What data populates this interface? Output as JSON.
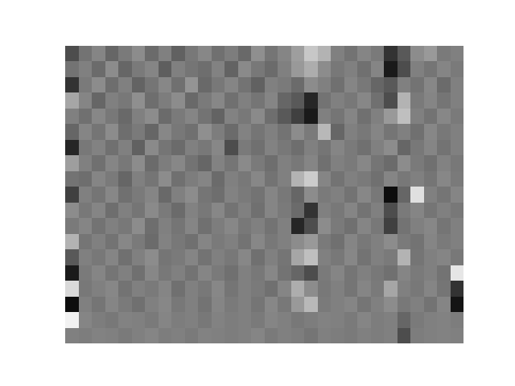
{
  "chart_data": {
    "type": "heatmap",
    "color": "gray",
    "tick_labels": false,
    "zlim": [
      0,
      1
    ],
    "cells": [
      [
        0.3,
        0.45,
        0.52,
        0.4,
        0.48,
        0.55,
        0.42,
        0.5,
        0.38,
        0.47,
        0.53,
        0.44,
        0.49,
        0.41,
        0.56,
        0.46,
        0.52,
        0.62,
        0.78,
        0.7,
        0.5,
        0.45,
        0.52,
        0.48,
        0.2,
        0.35,
        0.55,
        0.6,
        0.48,
        0.5
      ],
      [
        0.45,
        0.5,
        0.42,
        0.55,
        0.4,
        0.48,
        0.52,
        0.37,
        0.5,
        0.46,
        0.43,
        0.51,
        0.39,
        0.54,
        0.47,
        0.42,
        0.5,
        0.6,
        0.68,
        0.55,
        0.47,
        0.5,
        0.44,
        0.52,
        0.1,
        0.3,
        0.5,
        0.46,
        0.52,
        0.48
      ],
      [
        0.2,
        0.48,
        0.55,
        0.43,
        0.5,
        0.39,
        0.46,
        0.53,
        0.44,
        0.58,
        0.41,
        0.47,
        0.52,
        0.45,
        0.38,
        0.5,
        0.48,
        0.42,
        0.55,
        0.5,
        0.44,
        0.52,
        0.47,
        0.4,
        0.35,
        0.5,
        0.45,
        0.53,
        0.42,
        0.5
      ],
      [
        0.65,
        0.52,
        0.4,
        0.5,
        0.47,
        0.56,
        0.43,
        0.49,
        0.55,
        0.41,
        0.48,
        0.53,
        0.44,
        0.5,
        0.46,
        0.52,
        0.4,
        0.35,
        0.15,
        0.45,
        0.5,
        0.47,
        0.53,
        0.44,
        0.3,
        0.7,
        0.48,
        0.52,
        0.46,
        0.5
      ],
      [
        0.5,
        0.44,
        0.53,
        0.47,
        0.41,
        0.5,
        0.55,
        0.42,
        0.48,
        0.52,
        0.45,
        0.39,
        0.51,
        0.47,
        0.54,
        0.43,
        0.35,
        0.25,
        0.1,
        0.5,
        0.46,
        0.52,
        0.44,
        0.5,
        0.6,
        0.75,
        0.5,
        0.45,
        0.53,
        0.48
      ],
      [
        0.4,
        0.52,
        0.46,
        0.55,
        0.43,
        0.48,
        0.4,
        0.53,
        0.47,
        0.44,
        0.56,
        0.49,
        0.42,
        0.51,
        0.46,
        0.5,
        0.45,
        0.55,
        0.48,
        0.72,
        0.4,
        0.5,
        0.47,
        0.52,
        0.46,
        0.5,
        0.44,
        0.53,
        0.47,
        0.5
      ],
      [
        0.15,
        0.47,
        0.51,
        0.44,
        0.5,
        0.38,
        0.54,
        0.46,
        0.42,
        0.5,
        0.47,
        0.53,
        0.3,
        0.48,
        0.44,
        0.51,
        0.47,
        0.43,
        0.5,
        0.46,
        0.52,
        0.48,
        0.44,
        0.5,
        0.55,
        0.4,
        0.47,
        0.52,
        0.45,
        0.5
      ],
      [
        0.62,
        0.5,
        0.44,
        0.52,
        0.47,
        0.55,
        0.42,
        0.49,
        0.53,
        0.45,
        0.4,
        0.51,
        0.46,
        0.54,
        0.48,
        0.43,
        0.5,
        0.47,
        0.52,
        0.44,
        0.5,
        0.48,
        0.53,
        0.46,
        0.42,
        0.55,
        0.48,
        0.44,
        0.51,
        0.47
      ],
      [
        0.45,
        0.43,
        0.52,
        0.48,
        0.4,
        0.5,
        0.46,
        0.55,
        0.44,
        0.49,
        0.52,
        0.42,
        0.5,
        0.47,
        0.53,
        0.45,
        0.5,
        0.7,
        0.8,
        0.52,
        0.45,
        0.5,
        0.48,
        0.44,
        0.52,
        0.47,
        0.5,
        0.46,
        0.53,
        0.48
      ],
      [
        0.25,
        0.5,
        0.46,
        0.53,
        0.44,
        0.48,
        0.52,
        0.41,
        0.5,
        0.55,
        0.46,
        0.43,
        0.51,
        0.48,
        0.45,
        0.52,
        0.47,
        0.4,
        0.55,
        0.48,
        0.5,
        0.45,
        0.53,
        0.47,
        0.05,
        0.4,
        0.88,
        0.5,
        0.46,
        0.52
      ],
      [
        0.55,
        0.47,
        0.52,
        0.43,
        0.5,
        0.46,
        0.54,
        0.48,
        0.42,
        0.51,
        0.47,
        0.53,
        0.45,
        0.5,
        0.44,
        0.52,
        0.48,
        0.42,
        0.2,
        0.5,
        0.47,
        0.52,
        0.45,
        0.5,
        0.3,
        0.48,
        0.52,
        0.46,
        0.5,
        0.47
      ],
      [
        0.48,
        0.52,
        0.45,
        0.5,
        0.47,
        0.55,
        0.43,
        0.5,
        0.46,
        0.52,
        0.44,
        0.49,
        0.53,
        0.47,
        0.5,
        0.45,
        0.5,
        0.15,
        0.3,
        0.55,
        0.48,
        0.44,
        0.52,
        0.47,
        0.25,
        0.45,
        0.5,
        0.53,
        0.46,
        0.5
      ],
      [
        0.7,
        0.46,
        0.5,
        0.45,
        0.53,
        0.48,
        0.42,
        0.51,
        0.47,
        0.44,
        0.52,
        0.48,
        0.5,
        0.45,
        0.53,
        0.47,
        0.5,
        0.55,
        0.6,
        0.48,
        0.44,
        0.52,
        0.47,
        0.5,
        0.55,
        0.48,
        0.45,
        0.52,
        0.48,
        0.5
      ],
      [
        0.35,
        0.5,
        0.47,
        0.52,
        0.44,
        0.5,
        0.55,
        0.46,
        0.48,
        0.52,
        0.45,
        0.5,
        0.47,
        0.53,
        0.44,
        0.5,
        0.46,
        0.65,
        0.75,
        0.5,
        0.47,
        0.53,
        0.45,
        0.5,
        0.48,
        0.7,
        0.46,
        0.5,
        0.52,
        0.47
      ],
      [
        0.1,
        0.48,
        0.52,
        0.46,
        0.5,
        0.44,
        0.53,
        0.47,
        0.5,
        0.45,
        0.52,
        0.48,
        0.44,
        0.5,
        0.47,
        0.53,
        0.45,
        0.4,
        0.3,
        0.48,
        0.52,
        0.46,
        0.5,
        0.47,
        0.44,
        0.52,
        0.48,
        0.5,
        0.45,
        0.9
      ],
      [
        0.85,
        0.47,
        0.5,
        0.53,
        0.45,
        0.5,
        0.48,
        0.52,
        0.44,
        0.5,
        0.47,
        0.53,
        0.46,
        0.5,
        0.48,
        0.44,
        0.52,
        0.68,
        0.55,
        0.47,
        0.5,
        0.46,
        0.52,
        0.48,
        0.65,
        0.5,
        0.47,
        0.52,
        0.46,
        0.2
      ],
      [
        0.05,
        0.5,
        0.46,
        0.52,
        0.48,
        0.44,
        0.5,
        0.53,
        0.47,
        0.5,
        0.45,
        0.52,
        0.48,
        0.5,
        0.46,
        0.53,
        0.47,
        0.6,
        0.72,
        0.48,
        0.5,
        0.52,
        0.46,
        0.5,
        0.55,
        0.47,
        0.5,
        0.45,
        0.52,
        0.08
      ],
      [
        0.95,
        0.52,
        0.49,
        0.47,
        0.51,
        0.5,
        0.48,
        0.52,
        0.49,
        0.5,
        0.47,
        0.51,
        0.49,
        0.5,
        0.48,
        0.52,
        0.5,
        0.47,
        0.49,
        0.51,
        0.5,
        0.48,
        0.52,
        0.49,
        0.5,
        0.4,
        0.48,
        0.5,
        0.51,
        0.49
      ],
      [
        0.5,
        0.49,
        0.51,
        0.5,
        0.48,
        0.5,
        0.52,
        0.49,
        0.5,
        0.48,
        0.51,
        0.5,
        0.49,
        0.5,
        0.52,
        0.48,
        0.5,
        0.49,
        0.46,
        0.5,
        0.49,
        0.48,
        0.5,
        0.49,
        0.5,
        0.3,
        0.49,
        0.5,
        0.51,
        0.5
      ]
    ]
  }
}
